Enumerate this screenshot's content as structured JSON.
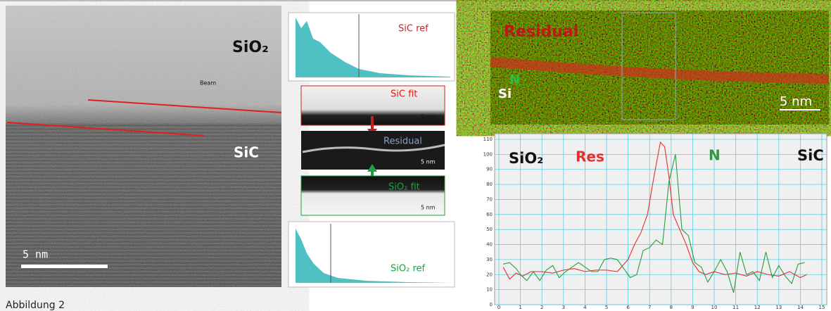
{
  "caption": "Abbildung 2",
  "tem_image": {
    "labels": [
      "SiO₂",
      "Beam",
      "SiC"
    ],
    "scale_bar": "5 nm"
  },
  "panels": {
    "sic_ref": "SiC ref",
    "sic_fit": "SiC fit",
    "residual": "Residual",
    "sio2_fit": "SiO₂ fit",
    "sio2_ref": "SiO₂ ref",
    "scale_bars": [
      "5 nm",
      "5 nm",
      "5 nm"
    ]
  },
  "map": {
    "labels": [
      "Residual",
      "N",
      "Si"
    ],
    "scale_bar": "5 nm"
  },
  "chart_data": {
    "type": "line",
    "annotations": [
      "SiO₂",
      "SiC"
    ],
    "series": [
      {
        "name": "Res",
        "color": "#e03030",
        "x": [
          0.2,
          0.5,
          0.8,
          1.1,
          1.5,
          2.0,
          2.5,
          3.0,
          3.5,
          4.0,
          4.5,
          5.0,
          5.5,
          6.0,
          6.3,
          6.6,
          6.9,
          7.2,
          7.5,
          7.7,
          7.9,
          8.1,
          8.4,
          8.7,
          9.0,
          9.3,
          9.6,
          10.0,
          10.5,
          11.0,
          11.5,
          12.0,
          12.5,
          13.0,
          13.5,
          14.0,
          14.3
        ],
        "values": [
          25,
          17,
          21,
          19,
          22,
          22,
          21,
          23,
          24,
          22,
          23,
          23,
          22,
          30,
          40,
          48,
          60,
          85,
          108,
          105,
          85,
          60,
          50,
          40,
          28,
          22,
          20,
          22,
          20,
          21,
          19,
          22,
          20,
          19,
          22,
          18,
          20
        ]
      },
      {
        "name": "N",
        "color": "#2e9a3a",
        "x": [
          0.2,
          0.5,
          0.8,
          1.0,
          1.3,
          1.6,
          1.9,
          2.2,
          2.5,
          2.8,
          3.1,
          3.4,
          3.7,
          4.0,
          4.3,
          4.6,
          4.9,
          5.2,
          5.5,
          5.8,
          6.1,
          6.4,
          6.7,
          7.0,
          7.3,
          7.6,
          7.9,
          8.2,
          8.5,
          8.8,
          9.1,
          9.4,
          9.7,
          10.0,
          10.3,
          10.6,
          10.9,
          11.2,
          11.5,
          11.8,
          12.1,
          12.4,
          12.7,
          13.0,
          13.3,
          13.6,
          13.9,
          14.2
        ],
        "values": [
          27,
          28,
          24,
          20,
          16,
          22,
          16,
          23,
          26,
          18,
          22,
          25,
          28,
          25,
          22,
          22,
          30,
          31,
          30,
          24,
          18,
          20,
          36,
          38,
          43,
          40,
          82,
          100,
          50,
          46,
          28,
          25,
          15,
          22,
          30,
          22,
          8,
          35,
          20,
          22,
          16,
          35,
          18,
          26,
          19,
          14,
          27,
          28
        ]
      }
    ],
    "xlim": [
      0,
      15
    ],
    "xticks": [
      0,
      1,
      2,
      3,
      4,
      5,
      6,
      7,
      8,
      9,
      10,
      11,
      12,
      13,
      14,
      15
    ],
    "ylim": [
      0,
      110
    ],
    "yticks": [
      0,
      10,
      20,
      30,
      40,
      50,
      60,
      70,
      80,
      90,
      100,
      110
    ],
    "grid": true
  }
}
